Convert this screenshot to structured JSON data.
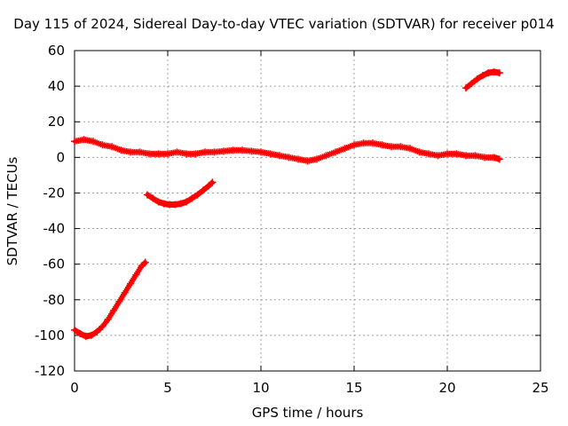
{
  "chart_data": {
    "type": "scatter",
    "title": "Day 115 of 2024, Sidereal Day-to-day VTEC variation (SDTVAR) for receiver p014",
    "xlabel": "GPS time / hours",
    "ylabel": "SDTVAR / TECUs",
    "xlim": [
      0,
      25
    ],
    "ylim": [
      -120,
      60
    ],
    "xticks": [
      0,
      5,
      10,
      15,
      20,
      25
    ],
    "yticks": [
      -120,
      -100,
      -80,
      -60,
      -40,
      -20,
      0,
      20,
      40,
      60
    ],
    "grid": true,
    "marker_color": "#ff0000",
    "series": [
      {
        "name": "main-band",
        "x": [
          0.0,
          0.5,
          1.0,
          1.5,
          2.0,
          2.5,
          3.0,
          3.5,
          4.0,
          4.5,
          5.0,
          5.5,
          6.0,
          6.5,
          7.0,
          7.5,
          8.0,
          8.5,
          9.0,
          9.5,
          10.0,
          10.5,
          11.0,
          11.5,
          12.0,
          12.5,
          13.0,
          13.5,
          14.0,
          14.5,
          15.0,
          15.5,
          16.0,
          16.5,
          17.0,
          17.5,
          18.0,
          18.5,
          19.0,
          19.5,
          20.0,
          20.5,
          21.0,
          21.5,
          22.0,
          22.5,
          22.8
        ],
        "y": [
          9,
          10,
          9,
          7,
          6,
          4,
          3,
          3,
          2,
          2,
          2,
          3,
          2,
          2,
          3,
          3,
          3.5,
          4,
          4,
          3.5,
          3,
          2,
          1,
          0,
          -1,
          -2,
          -1,
          1,
          3,
          5,
          7,
          8,
          8,
          7,
          6,
          6,
          5,
          3,
          2,
          1,
          2,
          2,
          1,
          1,
          0,
          0,
          -1
        ]
      },
      {
        "name": "segment-2",
        "x": [
          3.9,
          4.2,
          4.5,
          4.8,
          5.1,
          5.4,
          5.7,
          6.0,
          6.3,
          6.6,
          6.9,
          7.2,
          7.4
        ],
        "y": [
          -21,
          -23,
          -25,
          -26,
          -26.5,
          -26.5,
          -26,
          -25,
          -23,
          -21,
          -18.5,
          -16,
          -14
        ]
      },
      {
        "name": "segment-3",
        "x": [
          0.0,
          0.3,
          0.6,
          0.9,
          1.2,
          1.5,
          1.8,
          2.1,
          2.4,
          2.7,
          3.0,
          3.3,
          3.6,
          3.8
        ],
        "y": [
          -97,
          -99,
          -100.5,
          -100,
          -98,
          -95,
          -91,
          -86,
          -81,
          -76,
          -71,
          -66,
          -61,
          -59
        ]
      },
      {
        "name": "segment-4",
        "x": [
          21.0,
          21.3,
          21.6,
          21.9,
          22.2,
          22.5,
          22.8
        ],
        "y": [
          39,
          41.5,
          44,
          46,
          47.5,
          48,
          47.5
        ]
      }
    ]
  }
}
